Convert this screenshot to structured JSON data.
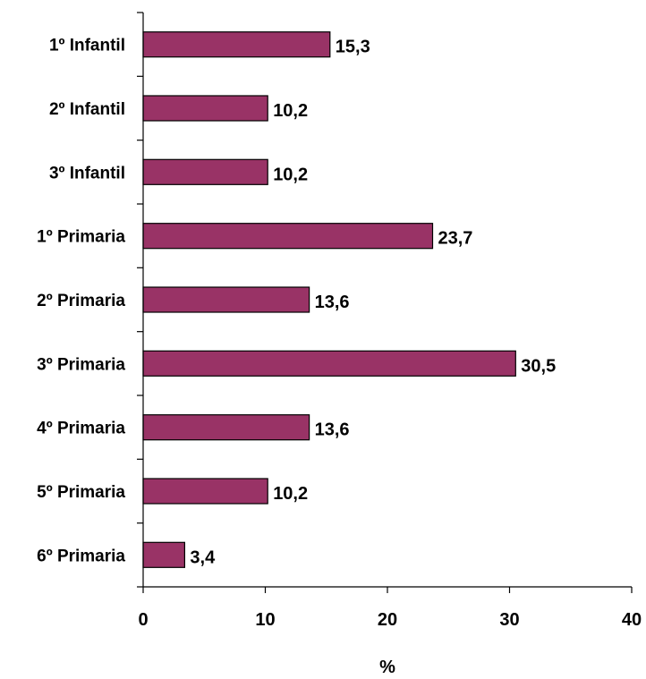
{
  "chart_data": {
    "type": "bar",
    "orientation": "horizontal",
    "categories": [
      "1º Infantil",
      "2º Infantil",
      "3º Infantil",
      "1º Primaria",
      "2º Primaria",
      "3º Primaria",
      "4º Primaria",
      "5º Primaria",
      "6º Primaria"
    ],
    "values": [
      15.3,
      10.2,
      10.2,
      23.7,
      13.6,
      30.5,
      13.6,
      10.2,
      3.4
    ],
    "value_labels": [
      "15,3",
      "10,2",
      "10,2",
      "23,7",
      "13,6",
      "30,5",
      "13,6",
      "10,2",
      "3,4"
    ],
    "xlim": [
      0,
      40
    ],
    "x_ticks": [
      0,
      10,
      20,
      30,
      40
    ],
    "x_tick_labels": [
      "0",
      "10",
      "20",
      "30",
      "40"
    ],
    "xlabel": "%",
    "ylabel": "",
    "title": "",
    "grid": false,
    "legend": "none",
    "colors": {
      "bar_fill": "#993366",
      "bar_stroke": "#000000",
      "axis": "#000000"
    }
  }
}
